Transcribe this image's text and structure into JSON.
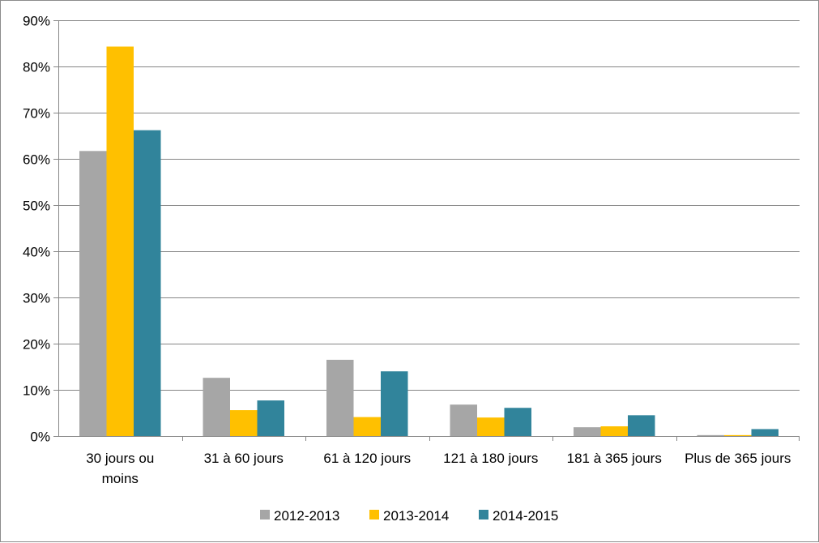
{
  "chart_data": {
    "type": "bar",
    "categories": [
      "30 jours ou moins",
      "31 à 60 jours",
      "61 à 120 jours",
      "121 à 180 jours",
      "181 à 365 jours",
      "Plus de 365 jours"
    ],
    "category_lines": [
      [
        "30 jours ou",
        "moins"
      ],
      [
        "31 à 60 jours"
      ],
      [
        "61 à 120 jours"
      ],
      [
        "121 à 180 jours"
      ],
      [
        "181 à 365 jours"
      ],
      [
        "Plus de 365 jours"
      ]
    ],
    "series": [
      {
        "name": "2012-2013",
        "color": "#a6a6a6",
        "values": [
          61.7,
          12.6,
          16.5,
          6.8,
          1.9,
          0.2
        ]
      },
      {
        "name": "2013-2014",
        "color": "#ffc000",
        "values": [
          84.3,
          5.6,
          4.1,
          4.0,
          2.1,
          0.2
        ]
      },
      {
        "name": "2014-2015",
        "color": "#31849b",
        "values": [
          66.2,
          7.7,
          14.0,
          6.1,
          4.5,
          1.5
        ]
      }
    ],
    "y_ticks": [
      "0%",
      "10%",
      "20%",
      "30%",
      "40%",
      "50%",
      "60%",
      "70%",
      "80%",
      "90%"
    ],
    "ylim": [
      0,
      90
    ],
    "grid": true,
    "legend_position": "bottom",
    "title": "",
    "xlabel": "",
    "ylabel": ""
  }
}
